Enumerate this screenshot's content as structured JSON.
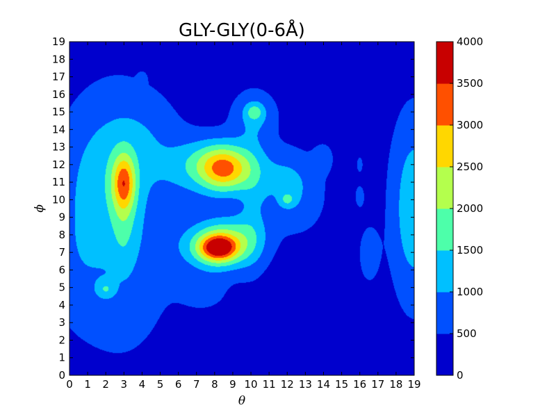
{
  "chart_data": {
    "type": "heatmap",
    "title": "GLY-GLY(0-6Å)",
    "xlabel": "θ",
    "ylabel": "ϕ",
    "xlim": [
      0,
      19
    ],
    "ylim": [
      0,
      19
    ],
    "x_ticks": [
      "0",
      "1",
      "2",
      "3",
      "4",
      "5",
      "6",
      "7",
      "8",
      "9",
      "10",
      "11",
      "12",
      "13",
      "14",
      "15",
      "16",
      "17",
      "18",
      "19"
    ],
    "y_ticks": [
      "0",
      "1",
      "2",
      "3",
      "4",
      "5",
      "6",
      "7",
      "8",
      "9",
      "10",
      "11",
      "12",
      "13",
      "14",
      "15",
      "16",
      "17",
      "18",
      "19"
    ],
    "colorbar": {
      "levels": [
        0,
        500,
        1000,
        1500,
        2000,
        2500,
        3000,
        3500,
        4000
      ],
      "tick_labels": [
        "0",
        "500",
        "1000",
        "1500",
        "2000",
        "2500",
        "3000",
        "3500",
        "4000"
      ],
      "colors": [
        "#0000cd",
        "#0050ff",
        "#00c0ff",
        "#4dffaa",
        "#b4ff4d",
        "#ffd700",
        "#ff5000",
        "#c80000"
      ]
    },
    "background_level": 250,
    "blobs": [
      {
        "cx": 2.8,
        "cy": 8.8,
        "sx": 2.2,
        "sy": 5.2,
        "a": 700
      },
      {
        "cx": 1.6,
        "cy": 11.5,
        "sx": 1.6,
        "sy": 2.6,
        "a": 450
      },
      {
        "cx": 0.3,
        "cy": 6.5,
        "sx": 1.2,
        "sy": 2.5,
        "a": 300
      },
      {
        "cx": 4.0,
        "cy": 13.5,
        "sx": 1.5,
        "sy": 1.6,
        "a": 350
      },
      {
        "cx": 3.0,
        "cy": 11.0,
        "sx": 0.45,
        "sy": 1.1,
        "a": 1900
      },
      {
        "cx": 3.0,
        "cy": 8.8,
        "sx": 0.5,
        "sy": 2.0,
        "a": 600
      },
      {
        "cx": 2.0,
        "cy": 4.9,
        "sx": 0.35,
        "sy": 0.35,
        "a": 700
      },
      {
        "cx": 8.0,
        "cy": 12.0,
        "sx": 1.5,
        "sy": 1.0,
        "a": 1250
      },
      {
        "cx": 8.6,
        "cy": 11.7,
        "sx": 0.9,
        "sy": 0.9,
        "a": 1700
      },
      {
        "cx": 7.2,
        "cy": 11.5,
        "sx": 1.6,
        "sy": 1.4,
        "a": 300
      },
      {
        "cx": 8.3,
        "cy": 7.3,
        "sx": 1.4,
        "sy": 0.95,
        "a": 1800
      },
      {
        "cx": 8.2,
        "cy": 7.25,
        "sx": 0.7,
        "sy": 0.5,
        "a": 2300
      },
      {
        "cx": 9.0,
        "cy": 8.2,
        "sx": 1.3,
        "sy": 0.8,
        "a": 500
      },
      {
        "cx": 7.5,
        "cy": 4.7,
        "sx": 1.0,
        "sy": 0.8,
        "a": 350
      },
      {
        "cx": 10.2,
        "cy": 14.8,
        "sx": 0.9,
        "sy": 1.0,
        "a": 700
      },
      {
        "cx": 10.2,
        "cy": 15.0,
        "sx": 0.35,
        "sy": 0.35,
        "a": 800
      },
      {
        "cx": 11.8,
        "cy": 11.3,
        "sx": 1.2,
        "sy": 1.2,
        "a": 650
      },
      {
        "cx": 10.1,
        "cy": 10.0,
        "sx": 0.6,
        "sy": 2.8,
        "a": 550
      },
      {
        "cx": 12.6,
        "cy": 9.8,
        "sx": 1.1,
        "sy": 1.4,
        "a": 450
      },
      {
        "cx": 12.0,
        "cy": 10.0,
        "sx": 0.3,
        "sy": 0.3,
        "a": 700
      },
      {
        "cx": 14.0,
        "cy": 12.4,
        "sx": 0.4,
        "sy": 0.6,
        "a": 450
      },
      {
        "cx": 16.5,
        "cy": 6.9,
        "sx": 0.45,
        "sy": 1.3,
        "a": 450
      },
      {
        "cx": 16.0,
        "cy": 10.2,
        "sx": 0.2,
        "sy": 0.5,
        "a": 450
      },
      {
        "cx": 16.0,
        "cy": 12.0,
        "sx": 0.15,
        "sy": 0.4,
        "a": 400
      },
      {
        "cx": 19.0,
        "cy": 9.5,
        "sx": 0.9,
        "sy": 3.6,
        "a": 1150
      },
      {
        "cx": 4.0,
        "cy": 16.9,
        "sx": 0.15,
        "sy": 0.2,
        "a": 450
      }
    ]
  }
}
